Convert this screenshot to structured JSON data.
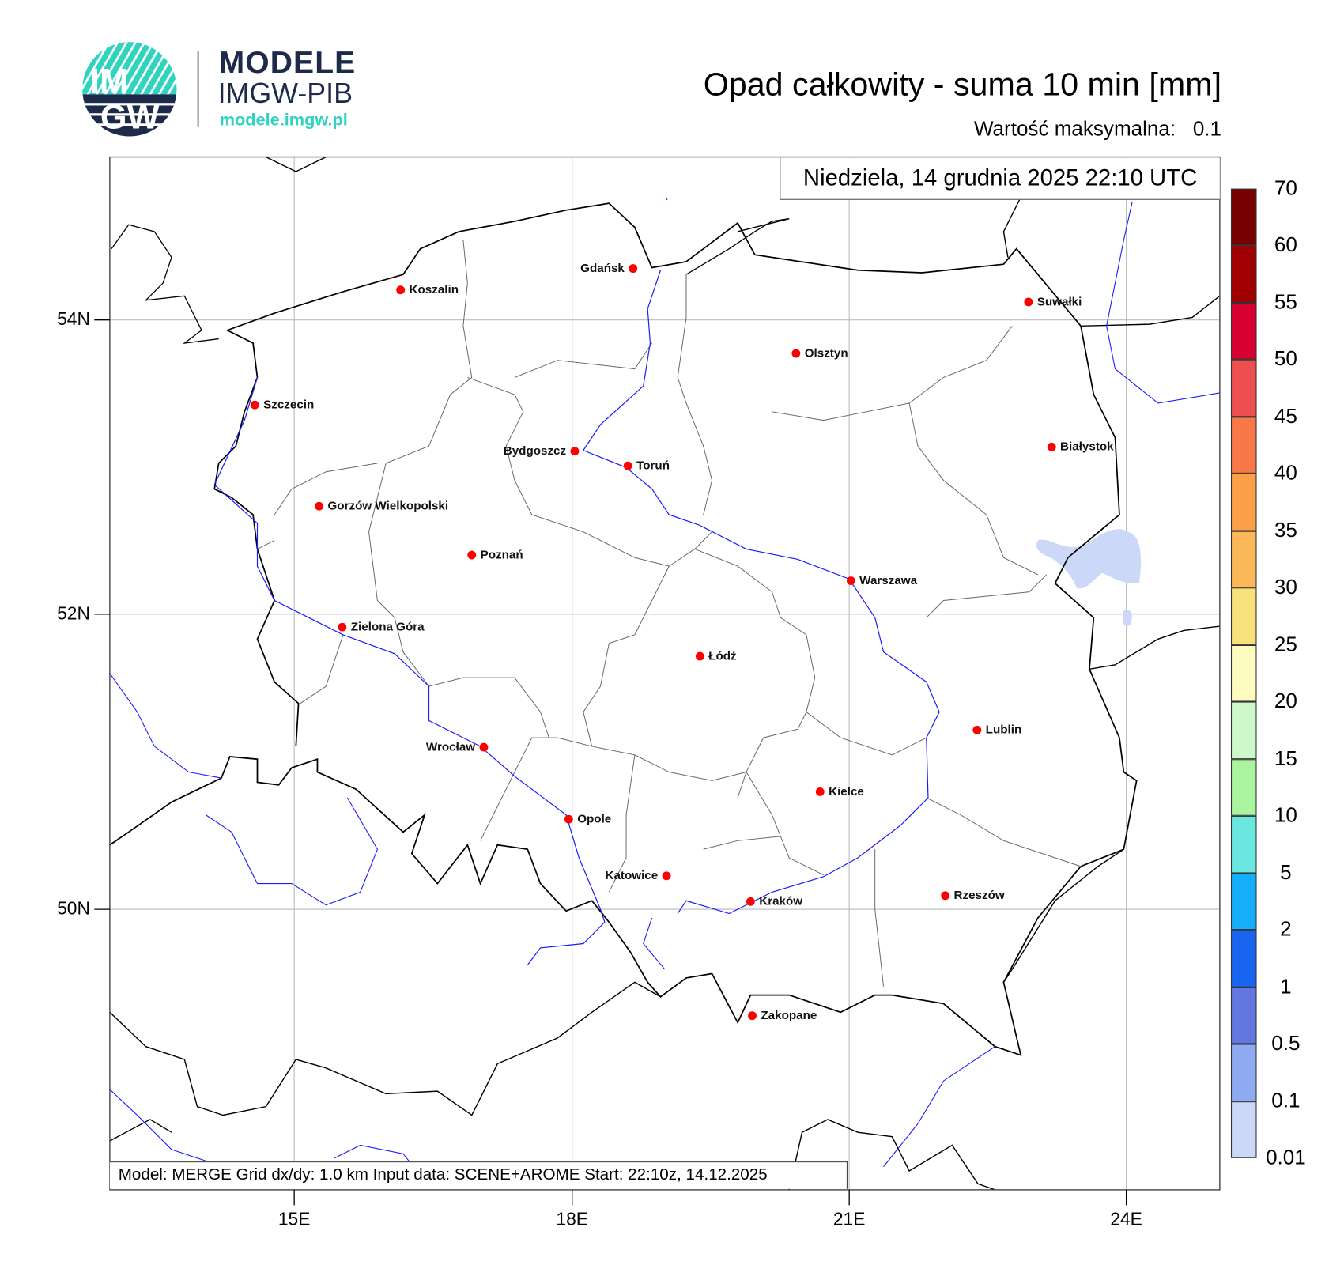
{
  "logo": {
    "brand": "MODELE",
    "org": "IMGW-PIB",
    "url": "modele.imgw.pl",
    "emblem_text": [
      "IM",
      "GW"
    ],
    "colors": {
      "navy": "#1d2a4a",
      "teal": "#2fd3c0"
    }
  },
  "header": {
    "title": "Opad całkowity - suma 10 min [mm]",
    "max_label": "Wartość maksymalna:",
    "max_value": "0.1"
  },
  "date_box": "Niedziela, 14 grudnia 2025 22:10 UTC",
  "info_box": "Model: MERGE   Grid dx/dy: 1.0 km   Input data: SCENE+AROME   Start: 22:10z, 14.12.2025",
  "axes": {
    "lon_ticks": [
      "15E",
      "18E",
      "21E",
      "24E"
    ],
    "lat_ticks": [
      "54N",
      "52N",
      "50N"
    ]
  },
  "cities": [
    "Gdańsk",
    "Koszalin",
    "Suwałki",
    "Olsztyn",
    "Szczecin",
    "Białystok",
    "Bydgoszcz",
    "Toruń",
    "Gorzów Wielkopolski",
    "Poznań",
    "Warszawa",
    "Zielona Góra",
    "Łódź",
    "Lublin",
    "Wrocław",
    "Kielce",
    "Opole",
    "Katowice",
    "Kraków",
    "Rzeszów",
    "Zakopane"
  ],
  "colorbar": {
    "labels": [
      "70",
      "60",
      "55",
      "50",
      "45",
      "40",
      "35",
      "30",
      "25",
      "20",
      "15",
      "10",
      "5",
      "2",
      "1",
      "0.5",
      "0.1",
      "0.01"
    ],
    "colors": [
      "#780000",
      "#a00000",
      "#d80030",
      "#ee5050",
      "#f87848",
      "#fca048",
      "#fbb858",
      "#f8e07a",
      "#fdfbc0",
      "#cdf8cc",
      "#aaf4a0",
      "#6ae8e0",
      "#14aff8",
      "#1964f0",
      "#6278e0",
      "#8eaaf0",
      "#ccd8f8"
    ]
  },
  "colors": {
    "city_marker": "#ff0000",
    "river": "#1a1aff",
    "border": "#000000",
    "precip_0.01": "#ccd8f8"
  }
}
